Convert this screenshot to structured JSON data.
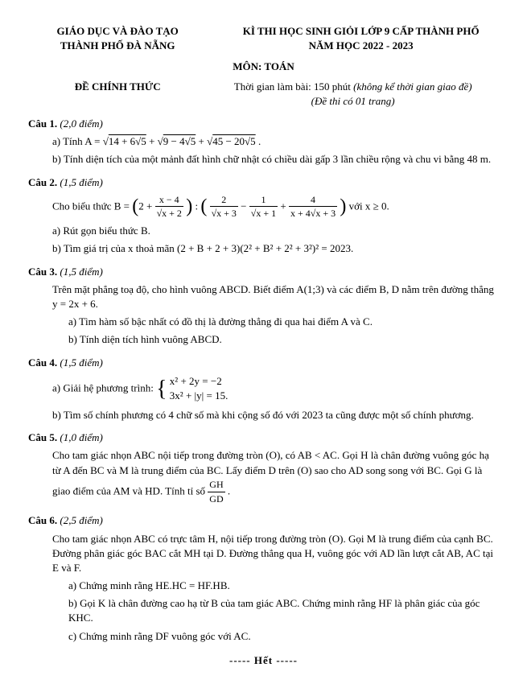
{
  "header": {
    "left1": "GIÁO DỤC VÀ ĐÀO TẠO",
    "left2": "THÀNH PHỐ ĐÀ NẴNG",
    "right1": "KÌ THI HỌC SINH GIỎI LỚP 9 CẤP THÀNH PHỐ",
    "right2": "NĂM HỌC 2022 - 2023"
  },
  "subject": "MÔN: TOÁN",
  "official": "ĐỀ CHÍNH THỨC",
  "time_prefix": "Thời gian làm bài: 150 phút ",
  "time_italic": "(không kể thời gian giao đề)",
  "pages": "(Đề thi có 01 trang)",
  "q1": {
    "title": "Câu 1.",
    "pts": "(2,0 điểm)",
    "a_prefix": "a) Tính A = ",
    "a_sqrt1": "14 + 6√5",
    "a_sqrt2": "9 − 4√5",
    "a_sqrt3": "45 − 20√5",
    "b": "b) Tính diện tích của một mảnh đất hình chữ nhật có chiều dài gấp 3 lần chiều rộng và chu vi bằng 48 m."
  },
  "q2": {
    "title": "Câu 2.",
    "pts": "(1,5 điểm)",
    "intro": "Cho biểu thức B = ",
    "term1_n": "x − 4",
    "term1_d": "√x + 2",
    "term2_n": "2",
    "term2_d": "√x + 3",
    "term3_n": "1",
    "term3_d": "√x + 1",
    "term4_n": "4",
    "term4_d": "x + 4√x + 3",
    "cond": " với x ≥ 0.",
    "a": "a) Rút gọn biểu thức B.",
    "b": "b) Tìm giá trị của x thoả mãn (2 + B + 2 + 3)(2² + B² + 2² + 3²)² = 2023."
  },
  "q3": {
    "title": "Câu 3.",
    "pts": "(1,5 điểm)",
    "intro": "Trên mặt phẳng toạ độ, cho hình vuông ABCD. Biết điểm A(1;3) và các điểm B, D nằm trên đường thẳng  y = 2x + 6.",
    "a": "a) Tìm hàm số bậc nhất có đồ thị là đường thẳng đi qua hai điểm A và C.",
    "b": "b) Tính diện tích hình vuông ABCD."
  },
  "q4": {
    "title": "Câu 4.",
    "pts": "(1,5 điểm)",
    "a_label": "a) Giải hệ phương trình: ",
    "sys1": "x² + 2y = −2",
    "sys2": "3x² + |y| = 15.",
    "b": "b) Tìm số chính phương có 4 chữ số mà khi cộng số đó với 2023 ta cũng được một số chính phương."
  },
  "q5": {
    "title": "Câu 5.",
    "pts": "(1,0 điểm)",
    "text1": "Cho tam giác nhọn ABC nội tiếp trong đường tròn (O), có AB < AC. Gọi H là chân đường vuông góc hạ từ A đến BC và M là trung điểm của BC. Lấy điểm D trên (O) sao cho AD song song với BC. Gọi G là giao điểm của AM và HD. Tính tỉ số ",
    "frac_n": "GH",
    "frac_d": "GD",
    "dot": "."
  },
  "q6": {
    "title": "Câu 6.",
    "pts": "(2,5 điểm)",
    "text": "Cho tam giác nhọn ABC có trực tâm H, nội tiếp trong đường tròn (O). Gọi M là trung điểm của cạnh BC. Đường phân giác góc BAC cắt MH tại D. Đường thẳng qua H, vuông góc với AD lần lượt cắt AB, AC tại E và F.",
    "a": "a) Chứng minh rằng HE.HC = HF.HB.",
    "b": "b) Gọi K là chân đường cao hạ từ B của tam giác ABC. Chứng minh rằng HF là phân giác của góc KHC.",
    "c": "c) Chứng minh rằng DF vuông góc với AC."
  },
  "footer": "----- Hết -----"
}
